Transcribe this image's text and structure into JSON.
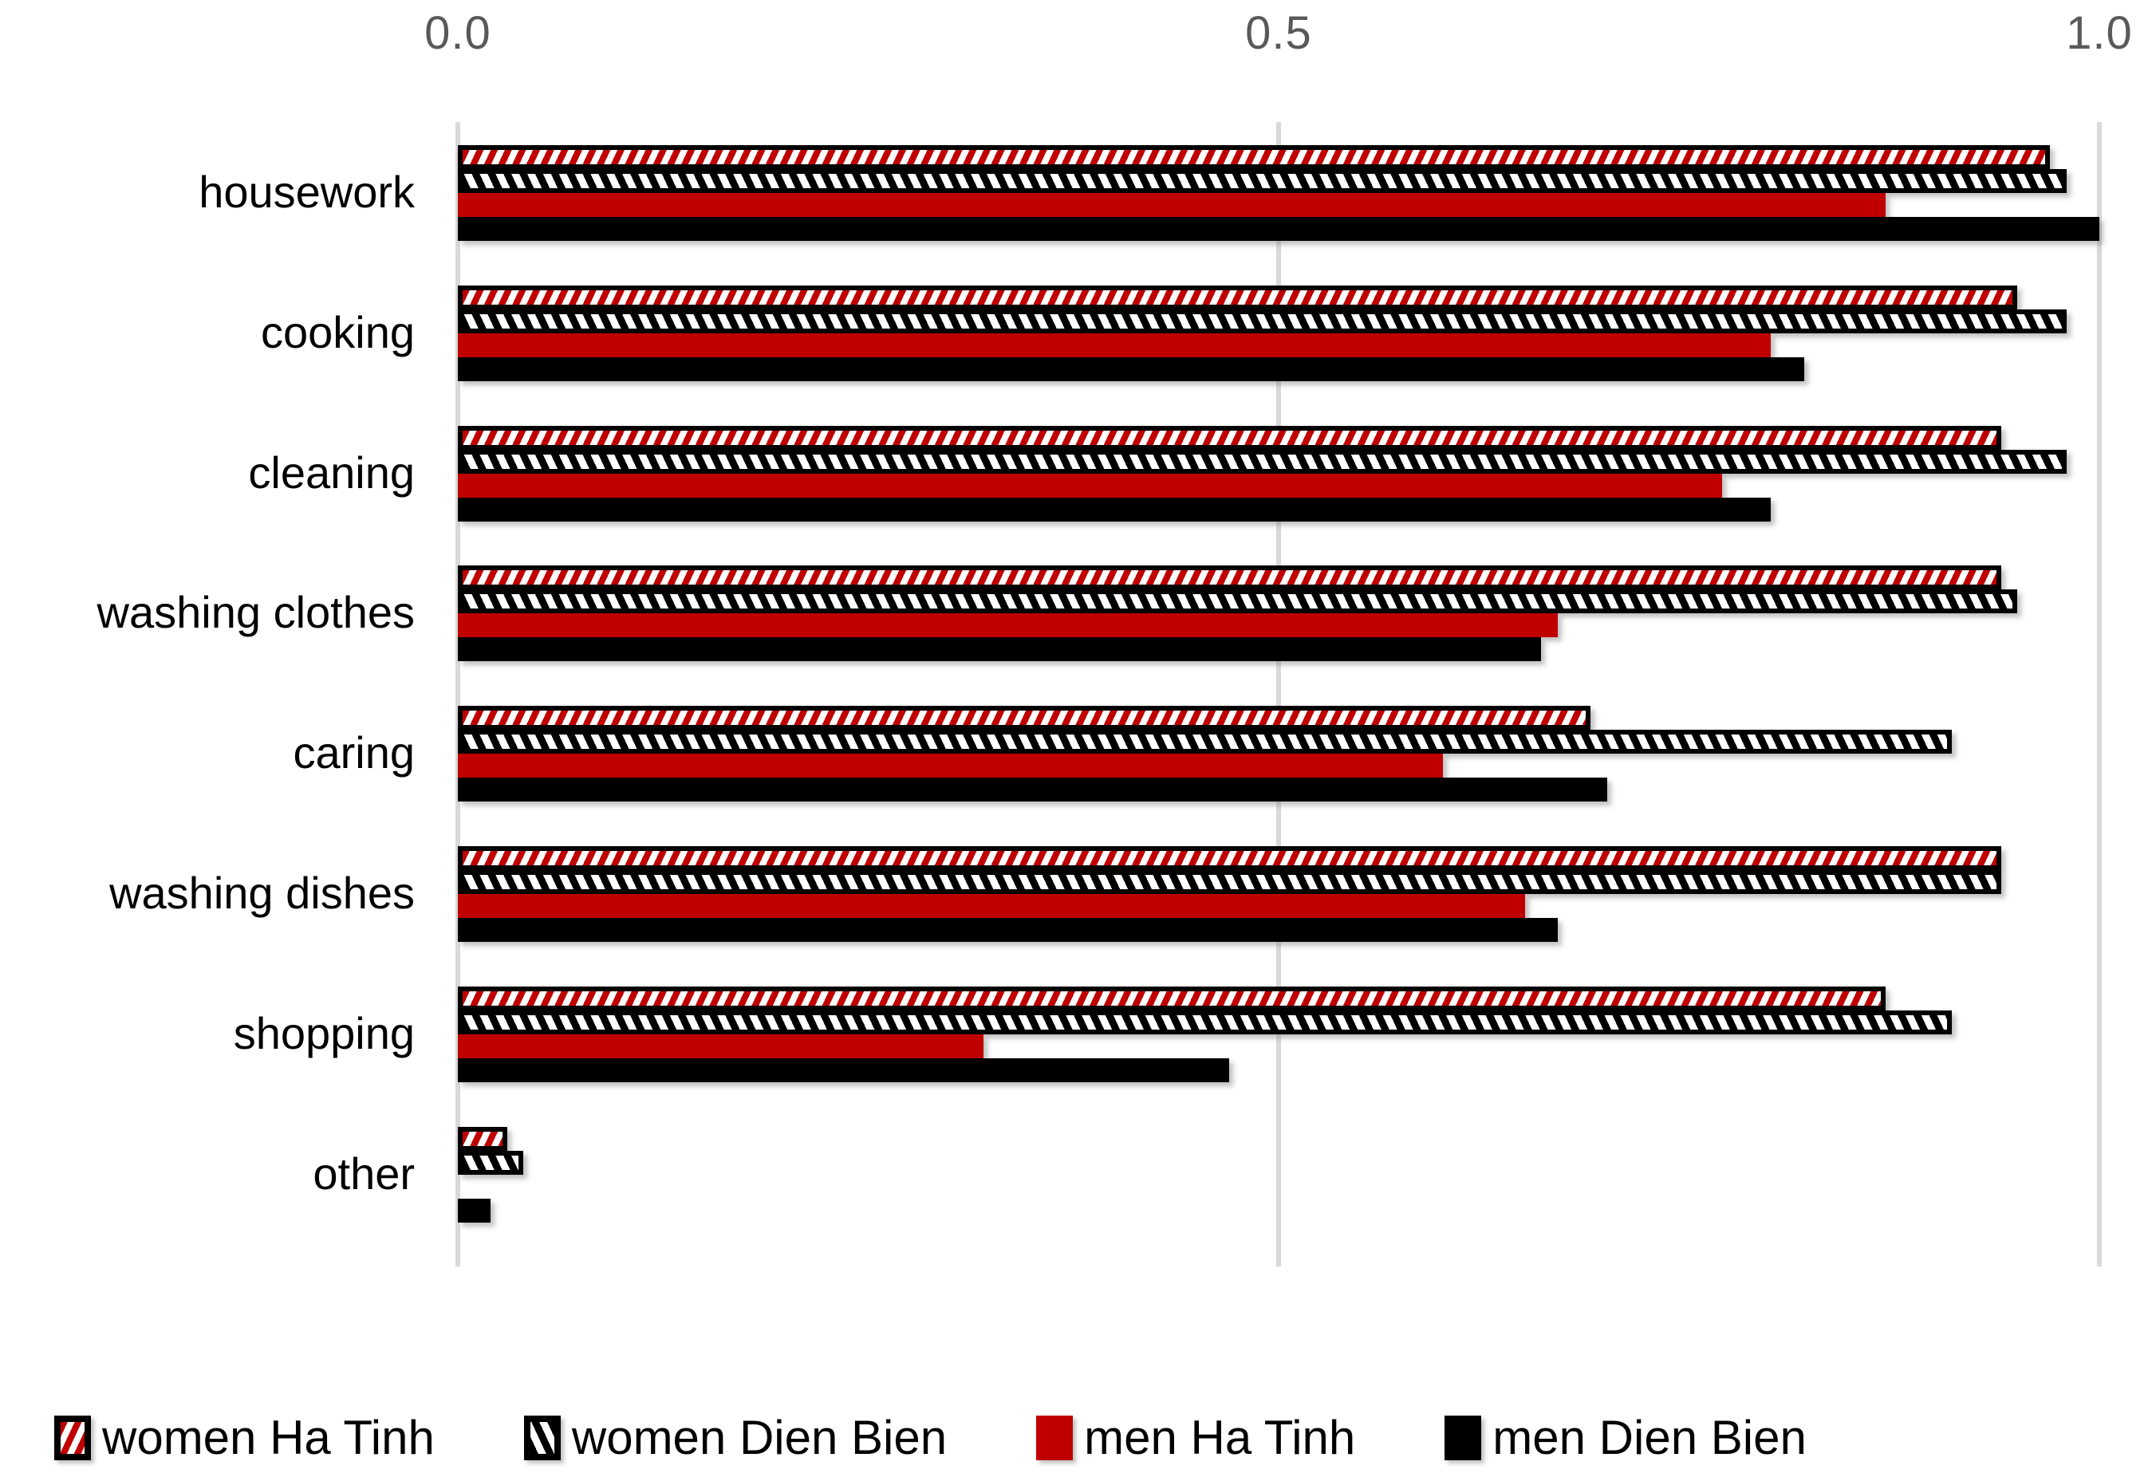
{
  "chart_data": {
    "type": "bar",
    "orientation": "horizontal",
    "title": "",
    "categories": [
      "housework",
      "cooking",
      "cleaning",
      "washing clothes",
      "caring",
      "washing dishes",
      "shopping",
      "other"
    ],
    "series": [
      {
        "name": "women Ha Tinh",
        "pattern": "red-hatch",
        "color": "#C00000",
        "values": [
          0.97,
          0.95,
          0.94,
          0.94,
          0.69,
          0.94,
          0.87,
          0.03
        ]
      },
      {
        "name": "women Dien Bien",
        "pattern": "black-hatch",
        "color": "#000000",
        "values": [
          0.98,
          0.98,
          0.98,
          0.95,
          0.91,
          0.94,
          0.91,
          0.04
        ]
      },
      {
        "name": "men Ha Tinh",
        "pattern": "solid-red",
        "color": "#C00000",
        "values": [
          0.87,
          0.8,
          0.77,
          0.67,
          0.6,
          0.65,
          0.32,
          0.0
        ]
      },
      {
        "name": "men Dien Bien",
        "pattern": "solid-black",
        "color": "#000000",
        "values": [
          1.0,
          0.82,
          0.8,
          0.66,
          0.7,
          0.67,
          0.47,
          0.02
        ]
      }
    ],
    "xlim": [
      0.0,
      1.0
    ],
    "xtick_labels": [
      "0.0",
      "0.5",
      "1.0"
    ],
    "xtick_values": [
      0.0,
      0.5,
      1.0
    ],
    "grid": "vertical-gridlines-on",
    "legend_position": "bottom",
    "background_color": "#FFFFFF",
    "gridline_color": "#D9D9D9",
    "tick_label_color": "#595959"
  }
}
